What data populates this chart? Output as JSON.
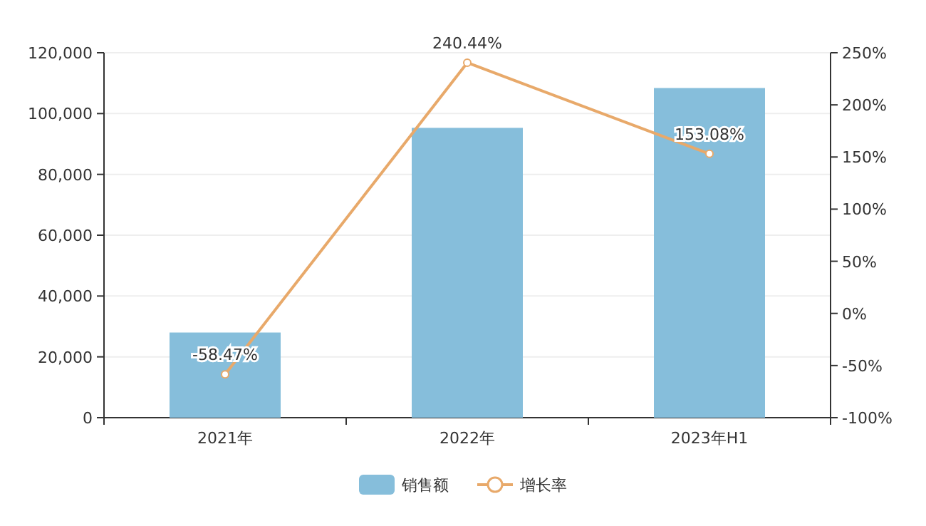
{
  "chart_data": {
    "type": "bar",
    "categories": [
      "2021年",
      "2022年",
      "2023年H1"
    ],
    "series": [
      {
        "name": "销售额",
        "color": "#86bedb",
        "values": [
          28000,
          95300,
          108400
        ]
      },
      {
        "name": "增长率",
        "type": "line",
        "axis": "y2",
        "color": "#e8a96a",
        "marker": "circle",
        "values": [
          -58.47,
          240.44,
          153.08
        ],
        "value_labels": [
          "-58.47%",
          "240.44%",
          "153.08%"
        ]
      }
    ],
    "ylim": [
      0,
      120000
    ],
    "yticks": [
      {
        "value": 0,
        "label": "0"
      },
      {
        "value": 20000,
        "label": "20,000"
      },
      {
        "value": 40000,
        "label": "40,000"
      },
      {
        "value": 60000,
        "label": "60,000"
      },
      {
        "value": 80000,
        "label": "80,000"
      },
      {
        "value": 100000,
        "label": "100,000"
      },
      {
        "value": 120000,
        "label": "120,000"
      }
    ],
    "y2lim": [
      -100,
      250
    ],
    "y2ticks": [
      {
        "value": -100,
        "label": "-100%"
      },
      {
        "value": -50,
        "label": "-50%"
      },
      {
        "value": 0,
        "label": "0%"
      },
      {
        "value": 50,
        "label": "50%"
      },
      {
        "value": 100,
        "label": "100%"
      },
      {
        "value": 150,
        "label": "150%"
      },
      {
        "value": 200,
        "label": "200%"
      },
      {
        "value": 250,
        "label": "250%"
      }
    ],
    "grid": "y",
    "legend": "bottom"
  }
}
